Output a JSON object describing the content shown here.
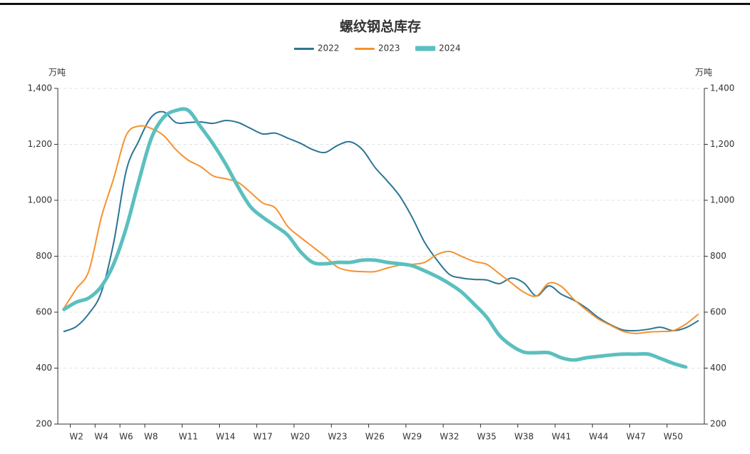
{
  "chart_data": {
    "type": "line",
    "title": "螺纹钢总库存",
    "y_label": "万吨",
    "y2_label": "万吨",
    "categories": [
      null,
      "W2",
      null,
      "W4",
      null,
      "W6",
      null,
      "W8",
      null,
      null,
      "W11",
      null,
      null,
      "W14",
      null,
      null,
      "W17",
      null,
      null,
      "W20",
      null,
      null,
      "W23",
      null,
      null,
      "W26",
      null,
      null,
      "W29",
      null,
      null,
      "W32",
      null,
      null,
      "W35",
      null,
      null,
      "W38",
      null,
      null,
      "W41",
      null,
      null,
      "W44",
      null,
      null,
      "W47",
      null,
      null,
      "W50",
      null,
      null
    ],
    "series": [
      {
        "name": "2022",
        "color": "#2b7595",
        "width": 2,
        "values": [
          531,
          549,
          595,
          671,
          850,
          1105,
          1211,
          1296,
          1316,
          1278,
          1278,
          1280,
          1275,
          1285,
          1278,
          1257,
          1237,
          1240,
          1222,
          1204,
          1181,
          1171,
          1196,
          1209,
          1181,
          1118,
          1069,
          1015,
          939,
          850,
          786,
          735,
          722,
          717,
          715,
          702,
          722,
          704,
          658,
          694,
          664,
          643,
          615,
          580,
          554,
          536,
          534,
          539,
          546,
          534,
          544,
          569
        ]
      },
      {
        "name": "2023",
        "color": "#f5922f",
        "width": 2,
        "values": [
          615,
          684,
          748,
          939,
          1079,
          1232,
          1265,
          1257,
          1232,
          1181,
          1143,
          1120,
          1087,
          1077,
          1064,
          1028,
          990,
          972,
          906,
          868,
          834,
          799,
          761,
          748,
          745,
          745,
          758,
          768,
          771,
          778,
          806,
          817,
          799,
          781,
          771,
          738,
          704,
          671,
          658,
          704,
          692,
          646,
          608,
          575,
          552,
          531,
          524,
          529,
          531,
          534,
          557,
          592
        ]
      },
      {
        "name": "2024",
        "color": "#5bbfbf",
        "width": 5,
        "values": [
          610,
          636,
          651,
          692,
          773,
          901,
          1066,
          1219,
          1296,
          1321,
          1321,
          1262,
          1201,
          1130,
          1048,
          977,
          939,
          908,
          875,
          817,
          778,
          773,
          778,
          778,
          786,
          786,
          778,
          773,
          766,
          748,
          727,
          702,
          671,
          628,
          582,
          518,
          480,
          457,
          455,
          455,
          437,
          429,
          437,
          442,
          447,
          450,
          450,
          450,
          434,
          417,
          404,
          null
        ]
      }
    ],
    "ylim": [
      200,
      1400
    ],
    "yticks": [
      200,
      400,
      600,
      800,
      {
        "value": 1000,
        "label": "1,000"
      },
      {
        "value": 1200,
        "label": "1,200"
      },
      {
        "value": 1400,
        "label": "1,400"
      }
    ],
    "y2lim": [
      200,
      1400
    ],
    "y2ticks": [
      200,
      400,
      600,
      800,
      {
        "value": 1000,
        "label": "1,000"
      },
      {
        "value": 1200,
        "label": "1,200"
      },
      {
        "value": 1400,
        "label": "1,400"
      }
    ],
    "grid": true,
    "legend": "top"
  }
}
